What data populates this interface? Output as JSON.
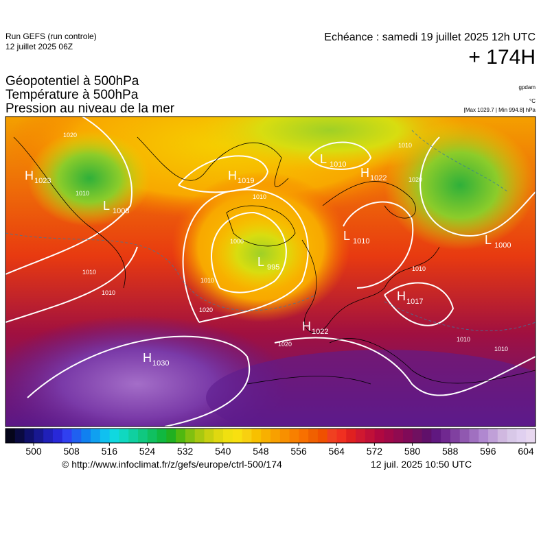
{
  "header": {
    "run": "Run GEFS (run controle)",
    "run_date": "12 juillet 2025 06Z",
    "echeance": "Echéance : samedi 19 juillet 2025 12h UTC",
    "offset": "+ 174H"
  },
  "titles": [
    "Géopotentiel à 500hPa",
    "Température à 500hPa",
    "Pression au niveau de la mer"
  ],
  "units": [
    "gpdam",
    "°C",
    "[Max 1029.7 | Min 994.8] hPa"
  ],
  "map": {
    "centers": [
      {
        "kind": "H",
        "value": "1023"
      },
      {
        "kind": "L",
        "value": "1008"
      },
      {
        "kind": "H",
        "value": "1019"
      },
      {
        "kind": "L",
        "value": "1010"
      },
      {
        "kind": "H",
        "value": "1022"
      },
      {
        "kind": "L",
        "value": "1010"
      },
      {
        "kind": "L",
        "value": "1000"
      },
      {
        "kind": "L",
        "value": "995"
      },
      {
        "kind": "H",
        "value": "1017"
      },
      {
        "kind": "H",
        "value": "1022"
      },
      {
        "kind": "H",
        "value": "1030"
      }
    ],
    "isobar_labels": [
      "1020",
      "1010",
      "1010",
      "1010",
      "1020",
      "1010",
      "1000",
      "1010",
      "1020",
      "1010",
      "1010",
      "1010",
      "1020",
      "1010"
    ]
  },
  "colorbar": {
    "ticks": [
      500,
      508,
      516,
      524,
      532,
      540,
      548,
      556,
      564,
      572,
      580,
      588,
      596,
      604
    ]
  },
  "footer": {
    "url": "© http://www.infoclimat.fr/z/gefs/europe/ctrl-500/174",
    "generated": "12 juil. 2025 10:50 UTC"
  }
}
